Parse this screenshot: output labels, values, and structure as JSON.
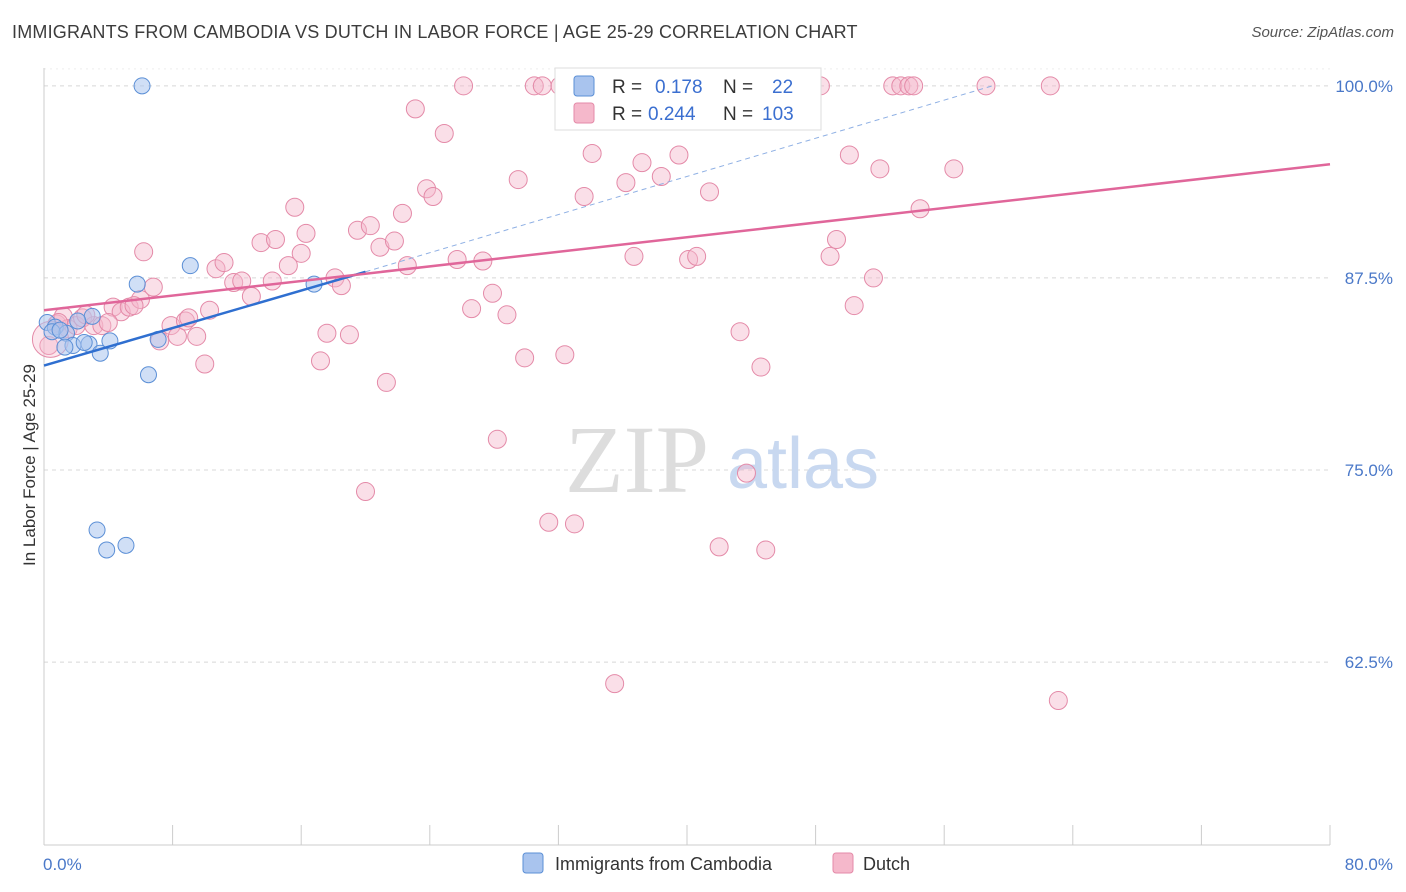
{
  "title": "IMMIGRANTS FROM CAMBODIA VS DUTCH IN LABOR FORCE | AGE 25-29 CORRELATION CHART",
  "source": "Source: ZipAtlas.com",
  "watermark": {
    "zip": "ZIP",
    "atlas": "atlas"
  },
  "colors": {
    "blue_fill": "#a9c4ee",
    "blue_stroke": "#5b8fd6",
    "blue_line": "#2f6fd0",
    "pink_fill": "#f5b8cb",
    "pink_stroke": "#e48aa8",
    "pink_line": "#e0669a",
    "tick_label": "#4a78c8",
    "grid": "#d8d8d8"
  },
  "legend": {
    "rows": [
      {
        "r_label": "R =",
        "r_value": "0.178",
        "n_label": "N =",
        "n_value": "22"
      },
      {
        "r_label": "R =",
        "r_value": "0.244",
        "n_label": "N =",
        "n_value": "103"
      }
    ]
  },
  "chart_data": {
    "type": "scatter",
    "title": "IMMIGRANTS FROM CAMBODIA VS DUTCH IN LABOR FORCE | AGE 25-29 CORRELATION CHART",
    "xlabel": "",
    "ylabel": "In Labor Force | Age 25-29",
    "xlim": [
      0,
      80
    ],
    "ylim": [
      50.6,
      100.9
    ],
    "x_tick_labels": [
      "0.0%",
      "80.0%"
    ],
    "y_ticks": [
      62.5,
      75.0,
      87.5,
      100.0
    ],
    "y_tick_labels": [
      "62.5%",
      "75.0%",
      "87.5%",
      "100.0%"
    ],
    "grid": true,
    "series": [
      {
        "name": "Immigrants from Cambodia",
        "color": "blue",
        "trend": {
          "x0": 0.0,
          "y0": 81.8,
          "x1": 20.0,
          "y1": 87.9,
          "dash_to_x": 59.0,
          "dash_to_y": 100.0
        },
        "points": [
          [
            0.2,
            84.6
          ],
          [
            0.7,
            84.3
          ],
          [
            1.4,
            83.9
          ],
          [
            1.8,
            83.1
          ],
          [
            2.8,
            83.2
          ],
          [
            3.0,
            85.0
          ],
          [
            3.5,
            82.6
          ],
          [
            4.1,
            83.4
          ],
          [
            5.8,
            87.1
          ],
          [
            6.1,
            100.0
          ],
          [
            6.5,
            81.2
          ],
          [
            7.1,
            83.5
          ],
          [
            9.1,
            88.3
          ],
          [
            16.8,
            87.1
          ],
          [
            1.3,
            83.0
          ],
          [
            3.3,
            71.1
          ],
          [
            3.9,
            69.8
          ],
          [
            5.1,
            70.1
          ],
          [
            0.5,
            84.0
          ],
          [
            2.1,
            84.7
          ],
          [
            1.0,
            84.1
          ],
          [
            2.5,
            83.3
          ]
        ]
      },
      {
        "name": "Dutch",
        "color": "pink",
        "trend": {
          "x0": 0.0,
          "y0": 85.4,
          "x1": 80.0,
          "y1": 94.9
        },
        "points": [
          [
            0.3,
            83.1
          ],
          [
            0.8,
            84.5
          ],
          [
            1.2,
            85.0
          ],
          [
            1.5,
            84.2
          ],
          [
            2.0,
            84.4
          ],
          [
            2.4,
            84.9
          ],
          [
            3.1,
            84.4
          ],
          [
            3.6,
            84.4
          ],
          [
            4.3,
            85.6
          ],
          [
            4.8,
            85.3
          ],
          [
            5.3,
            85.6
          ],
          [
            6.0,
            86.1
          ],
          [
            6.2,
            89.2
          ],
          [
            6.8,
            86.9
          ],
          [
            7.2,
            83.4
          ],
          [
            7.9,
            84.4
          ],
          [
            8.3,
            83.7
          ],
          [
            8.8,
            84.7
          ],
          [
            9.5,
            83.7
          ],
          [
            10.0,
            81.9
          ],
          [
            10.3,
            85.4
          ],
          [
            10.7,
            88.1
          ],
          [
            11.2,
            88.5
          ],
          [
            11.8,
            87.2
          ],
          [
            12.3,
            87.3
          ],
          [
            12.9,
            86.3
          ],
          [
            13.5,
            89.8
          ],
          [
            14.2,
            87.3
          ],
          [
            14.4,
            90.0
          ],
          [
            15.2,
            88.3
          ],
          [
            15.6,
            92.1
          ],
          [
            16.0,
            89.1
          ],
          [
            16.3,
            90.4
          ],
          [
            17.2,
            82.1
          ],
          [
            17.6,
            83.9
          ],
          [
            18.1,
            87.5
          ],
          [
            18.5,
            87.0
          ],
          [
            19.0,
            83.8
          ],
          [
            19.5,
            90.6
          ],
          [
            20.0,
            73.6
          ],
          [
            20.3,
            90.9
          ],
          [
            20.9,
            89.5
          ],
          [
            21.3,
            80.7
          ],
          [
            21.8,
            89.9
          ],
          [
            22.3,
            91.7
          ],
          [
            22.6,
            88.3
          ],
          [
            23.1,
            98.5
          ],
          [
            23.8,
            93.3
          ],
          [
            24.2,
            92.8
          ],
          [
            24.9,
            96.9
          ],
          [
            25.7,
            88.7
          ],
          [
            26.1,
            100.0
          ],
          [
            26.6,
            85.5
          ],
          [
            27.3,
            88.6
          ],
          [
            27.9,
            86.5
          ],
          [
            28.2,
            77.0
          ],
          [
            28.8,
            85.1
          ],
          [
            29.5,
            93.9
          ],
          [
            29.9,
            82.3
          ],
          [
            30.5,
            100.0
          ],
          [
            31.0,
            100.0
          ],
          [
            31.4,
            71.6
          ],
          [
            32.1,
            100.0
          ],
          [
            32.4,
            82.5
          ],
          [
            33.0,
            71.5
          ],
          [
            33.6,
            92.8
          ],
          [
            34.1,
            95.6
          ],
          [
            34.7,
            100.0
          ],
          [
            35.5,
            61.1
          ],
          [
            36.2,
            93.7
          ],
          [
            36.7,
            88.9
          ],
          [
            37.2,
            95.0
          ],
          [
            38.4,
            94.1
          ],
          [
            39.5,
            95.5
          ],
          [
            40.1,
            88.7
          ],
          [
            40.6,
            88.9
          ],
          [
            41.4,
            93.1
          ],
          [
            42.0,
            70.0
          ],
          [
            43.3,
            84.0
          ],
          [
            43.7,
            74.8
          ],
          [
            44.6,
            81.7
          ],
          [
            44.9,
            69.8
          ],
          [
            45.7,
            100.0
          ],
          [
            47.1,
            100.0
          ],
          [
            48.3,
            100.0
          ],
          [
            48.9,
            88.9
          ],
          [
            49.3,
            90.0
          ],
          [
            50.1,
            95.5
          ],
          [
            50.4,
            85.7
          ],
          [
            51.6,
            87.5
          ],
          [
            52.0,
            94.6
          ],
          [
            52.8,
            100.0
          ],
          [
            53.3,
            100.0
          ],
          [
            53.8,
            100.0
          ],
          [
            54.1,
            100.0
          ],
          [
            54.5,
            92.0
          ],
          [
            56.6,
            94.6
          ],
          [
            58.6,
            100.0
          ],
          [
            62.6,
            100.0
          ],
          [
            63.1,
            60.0
          ],
          [
            2.6,
            85.1
          ],
          [
            5.6,
            85.7
          ],
          [
            9.0,
            84.9
          ],
          [
            0.9,
            84.6
          ],
          [
            4.0,
            84.6
          ]
        ]
      }
    ]
  },
  "bottom_legend": [
    {
      "label": "Immigrants from Cambodia"
    },
    {
      "label": "Dutch"
    }
  ]
}
